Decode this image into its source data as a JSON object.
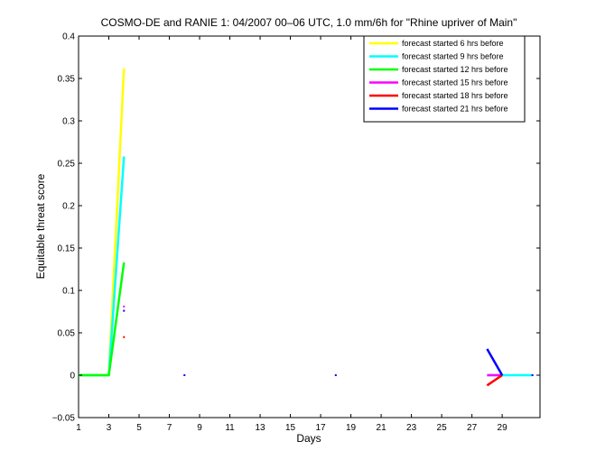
{
  "chart_data": {
    "type": "line",
    "title": "COSMO-DE and RANIE 1: 04/2007 00–06 UTC, 1.0 mm/6h for \"Rhine upriver of Main\"",
    "xlabel": "Days",
    "ylabel": "Equitable threat score",
    "xlim": [
      1,
      31.5
    ],
    "ylim": [
      -0.05,
      0.4
    ],
    "xticks": [
      1,
      3,
      5,
      7,
      9,
      11,
      13,
      15,
      17,
      19,
      21,
      23,
      25,
      27,
      29
    ],
    "yticks": [
      -0.05,
      0,
      0.05,
      0.1,
      0.15,
      0.2,
      0.25,
      0.3,
      0.35,
      0.4
    ],
    "ytick_labels": [
      "−0.05",
      "0",
      "0.05",
      "0.1",
      "0.15",
      "0.2",
      "0.25",
      "0.3",
      "0.35",
      "0.4"
    ],
    "grid": false,
    "legend_position": "top-right",
    "series": [
      {
        "name": "forecast started 6 hrs before",
        "color": "#ffff00",
        "segments": [
          [
            [
              1,
              0
            ],
            [
              2,
              0
            ],
            [
              3,
              0
            ],
            [
              4,
              0.362
            ]
          ]
        ]
      },
      {
        "name": "forecast started 9 hrs before",
        "color": "#00ffff",
        "segments": [
          [
            [
              1,
              0
            ],
            [
              2,
              0
            ],
            [
              3,
              0
            ],
            [
              4,
              0.258
            ]
          ],
          [
            [
              28,
              0
            ],
            [
              29,
              0
            ],
            [
              30,
              0
            ],
            [
              31,
              0
            ]
          ]
        ]
      },
      {
        "name": "forecast started 12 hrs before",
        "color": "#00ff00",
        "segments": [
          [
            [
              1,
              0
            ],
            [
              2,
              0
            ],
            [
              3,
              0
            ],
            [
              4,
              0.133
            ]
          ]
        ]
      },
      {
        "name": "forecast started 15 hrs before",
        "color": "#ff00ff",
        "segments": [
          [
            [
              4,
              0.081
            ]
          ],
          [
            [
              28,
              0
            ],
            [
              29,
              0
            ]
          ]
        ]
      },
      {
        "name": "forecast started 18 hrs before",
        "color": "#ff0000",
        "segments": [
          [
            [
              4,
              0.045
            ]
          ],
          [
            [
              28,
              -0.012
            ],
            [
              29,
              0
            ]
          ]
        ]
      },
      {
        "name": "forecast started 21 hrs before",
        "color": "#0000ff",
        "segments": [
          [
            [
              4,
              0.076
            ]
          ],
          [
            [
              8,
              0
            ]
          ],
          [
            [
              18,
              0
            ]
          ],
          [
            [
              28,
              0.031
            ],
            [
              29,
              0
            ]
          ],
          [
            [
              31,
              0
            ]
          ]
        ]
      }
    ]
  }
}
